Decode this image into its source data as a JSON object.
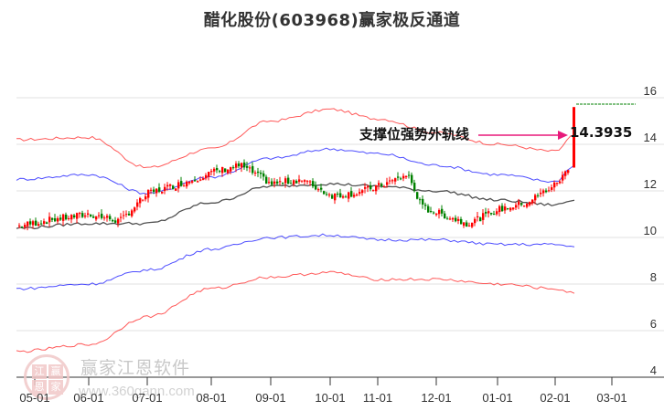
{
  "title": "醋化股份(603968)赢家极反通道",
  "annotation": {
    "label": "支撑位强势外轨线",
    "value": "14.3935",
    "arrow_color": "#e8197a"
  },
  "watermark": {
    "brand": "赢家江恩软件",
    "url": "www.360gann.com",
    "logo_chars": [
      "江",
      "赢",
      "恩",
      "家"
    ]
  },
  "colors": {
    "up_candle": "#ff0000",
    "down_candle": "#008000",
    "outer_band": "#ff3030",
    "inner_band": "#2020ff",
    "mid_line": "#333333",
    "target_line": "#008000",
    "grid": "#e0e0e0"
  },
  "chart_data": {
    "type": "candlestick",
    "title": "醋化股份(603968)赢家极反通道",
    "xlabel": "",
    "ylabel": "",
    "ylim": [
      4,
      16
    ],
    "y_ticks": [
      16,
      14,
      12,
      10,
      8,
      6,
      4
    ],
    "x_ticks": [
      "05-01",
      "06-01",
      "07-01",
      "08-01",
      "09-01",
      "10-01",
      "11-01",
      "12-01",
      "01-01",
      "02-01",
      "03-01"
    ],
    "grid": true,
    "series": [
      {
        "name": "close (approx)",
        "x": [
          "05-01",
          "05-15",
          "06-01",
          "06-15",
          "07-01",
          "07-15",
          "08-01",
          "08-15",
          "09-01",
          "09-15",
          "10-01",
          "10-15",
          "11-01",
          "11-15",
          "12-01",
          "12-15",
          "01-01",
          "01-15",
          "02-01",
          "02-08"
        ],
        "values": [
          10.5,
          10.8,
          11.0,
          10.7,
          11.9,
          12.3,
          12.8,
          13.1,
          12.3,
          12.5,
          11.8,
          11.9,
          12.2,
          12.7,
          11.3,
          10.6,
          11.2,
          11.5,
          12.3,
          15.6
        ]
      },
      {
        "name": "outer upper band",
        "x": [
          "05-01",
          "06-01",
          "07-01",
          "08-01",
          "09-01",
          "10-01",
          "11-01",
          "12-01",
          "01-01",
          "02-01",
          "02-08"
        ],
        "values": [
          14.2,
          14.3,
          13.0,
          13.8,
          15.0,
          15.5,
          15.1,
          14.5,
          14.0,
          13.7,
          14.3935
        ]
      },
      {
        "name": "inner upper band",
        "x": [
          "05-01",
          "06-01",
          "07-01",
          "08-01",
          "09-01",
          "10-01",
          "11-01",
          "12-01",
          "01-01",
          "02-01",
          "02-08"
        ],
        "values": [
          12.5,
          12.7,
          11.9,
          12.6,
          13.4,
          13.8,
          13.6,
          13.1,
          12.7,
          12.4,
          13.1
        ]
      },
      {
        "name": "middle line",
        "x": [
          "05-01",
          "06-01",
          "07-01",
          "08-01",
          "09-01",
          "10-01",
          "11-01",
          "12-01",
          "01-01",
          "02-01",
          "02-08"
        ],
        "values": [
          10.4,
          10.6,
          10.6,
          11.5,
          12.2,
          12.3,
          12.2,
          12.0,
          11.6,
          11.4,
          11.6
        ]
      },
      {
        "name": "inner lower band",
        "x": [
          "05-01",
          "06-01",
          "07-01",
          "08-01",
          "09-01",
          "10-01",
          "11-01",
          "12-01",
          "01-01",
          "02-01",
          "02-08"
        ],
        "values": [
          7.8,
          8.0,
          8.6,
          9.5,
          10.0,
          10.1,
          9.9,
          9.9,
          9.7,
          9.7,
          9.6
        ]
      },
      {
        "name": "outer lower band",
        "x": [
          "05-01",
          "06-01",
          "07-01",
          "08-01",
          "09-01",
          "10-01",
          "11-01",
          "12-01",
          "01-01",
          "02-01",
          "02-08"
        ],
        "values": [
          5.1,
          5.4,
          6.6,
          7.8,
          8.3,
          8.5,
          8.2,
          8.2,
          8.0,
          7.8,
          7.6
        ]
      }
    ],
    "target_level": 15.6,
    "annotation": {
      "text": "支撑位强势外轨线",
      "value": 14.3935
    }
  }
}
